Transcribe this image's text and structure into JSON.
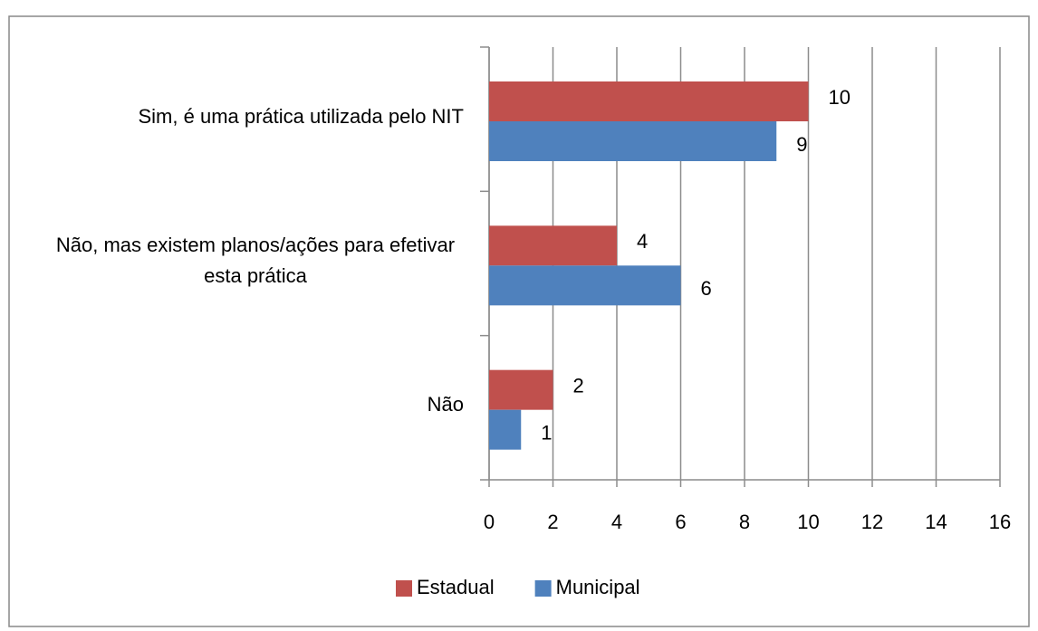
{
  "chart_data": {
    "type": "barh",
    "categories": [
      "Sim, é uma prática utilizada pelo NIT",
      "Não, mas existem planos/ações para efetivar esta prática",
      "Não"
    ],
    "series": [
      {
        "name": "Estadual",
        "color": "#c0504d",
        "values": [
          10,
          4,
          2
        ]
      },
      {
        "name": "Municipal",
        "color": "#4f81bd",
        "values": [
          9,
          6,
          1
        ]
      }
    ],
    "xlim": [
      0,
      16
    ],
    "xticks": [
      0,
      2,
      4,
      6,
      8,
      10,
      12,
      14,
      16
    ],
    "grid": true,
    "legend": "bottom"
  }
}
